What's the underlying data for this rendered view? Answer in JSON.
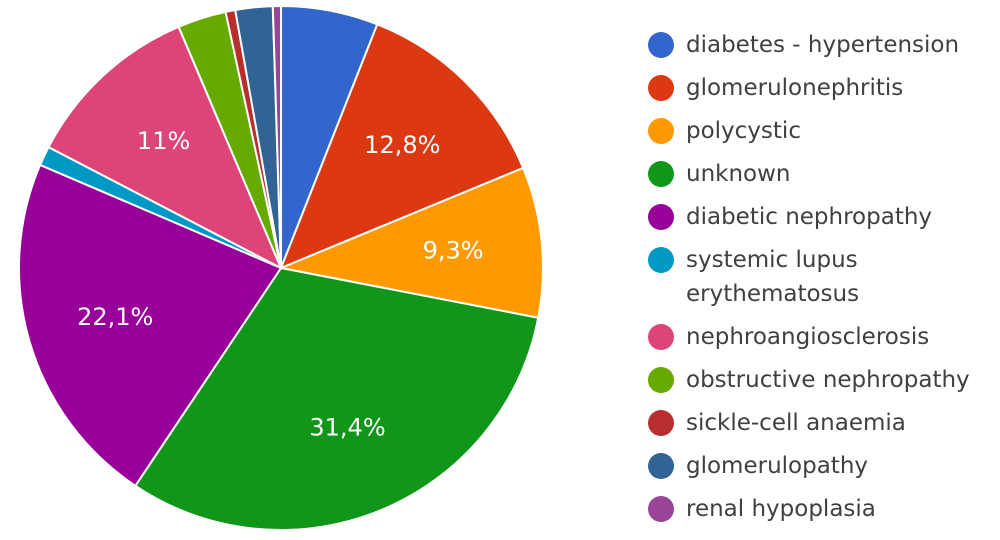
{
  "chart_data": {
    "type": "pie",
    "title": "",
    "legend_position": "right",
    "slices": [
      {
        "label": "diabetes - hypertension",
        "value": 6.0,
        "color": "#3366cc",
        "data_label": ""
      },
      {
        "label": "glomerulonephritis",
        "value": 12.8,
        "color": "#dc3912",
        "data_label": "12,8%"
      },
      {
        "label": "polycystic",
        "value": 9.3,
        "color": "#ff9900",
        "data_label": "9,3%"
      },
      {
        "label": "unknown",
        "value": 31.4,
        "color": "#109618",
        "data_label": "31,4%"
      },
      {
        "label": "diabetic nephropathy",
        "value": 22.1,
        "color": "#990099",
        "data_label": "22,1%"
      },
      {
        "label": "systemic lupus erythematosus",
        "value": 1.2,
        "color": "#0099c6",
        "data_label": ""
      },
      {
        "label": "nephroangiosclerosis",
        "value": 11.0,
        "color": "#dd4477",
        "data_label": "11%"
      },
      {
        "label": "obstructive nephropathy",
        "value": 3.0,
        "color": "#66aa00",
        "data_label": ""
      },
      {
        "label": "sickle-cell anaemia",
        "value": 0.6,
        "color": "#b82e2e",
        "data_label": ""
      },
      {
        "label": "glomerulopathy",
        "value": 2.3,
        "color": "#316395",
        "data_label": ""
      },
      {
        "label": "renal hypoplasia",
        "value": 0.5,
        "color": "#994499",
        "data_label": ""
      }
    ]
  }
}
